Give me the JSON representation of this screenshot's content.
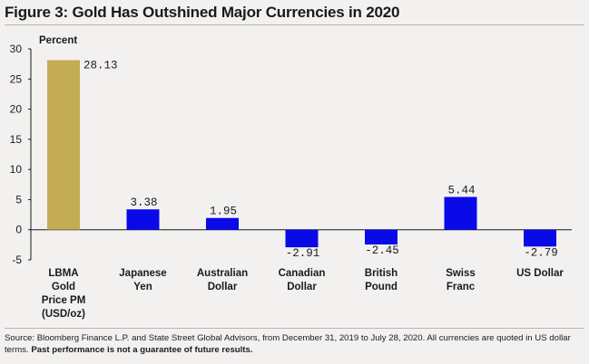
{
  "title": "Figure 3: Gold Has Outshined Major Currencies in 2020",
  "chart_data": {
    "type": "bar",
    "ylabel": "Percent",
    "ylim": [
      -5,
      30
    ],
    "yticks": [
      30,
      25,
      20,
      15,
      10,
      5,
      0,
      -5
    ],
    "categories": [
      [
        "LBMA",
        "Gold",
        "Price PM",
        "(USD/oz)"
      ],
      [
        "Japanese",
        "Yen"
      ],
      [
        "Australian",
        "Dollar"
      ],
      [
        "Canadian",
        "Dollar"
      ],
      [
        "British",
        "Pound"
      ],
      [
        "Swiss",
        "Franc"
      ],
      [
        "US Dollar"
      ]
    ],
    "values": [
      28.13,
      3.38,
      1.95,
      -2.91,
      -2.45,
      5.44,
      -2.79
    ],
    "value_labels": [
      "28.13",
      "3.38",
      "1.95",
      "-2.91",
      "-2.45",
      "5.44",
      "-2.79"
    ],
    "colors": [
      "#c4ac55",
      "#0a0ae8",
      "#0a0ae8",
      "#0a0ae8",
      "#0a0ae8",
      "#0a0ae8",
      "#0a0ae8"
    ],
    "grid": false,
    "legend": "none"
  },
  "source": {
    "text": "Source: Bloomberg Finance L.P. and State Street Global Advisors, from December 31, 2019 to July 28, 2020. All currencies are quoted in US dollar terms.",
    "bold": "Past performance is not a guarantee of future results."
  }
}
